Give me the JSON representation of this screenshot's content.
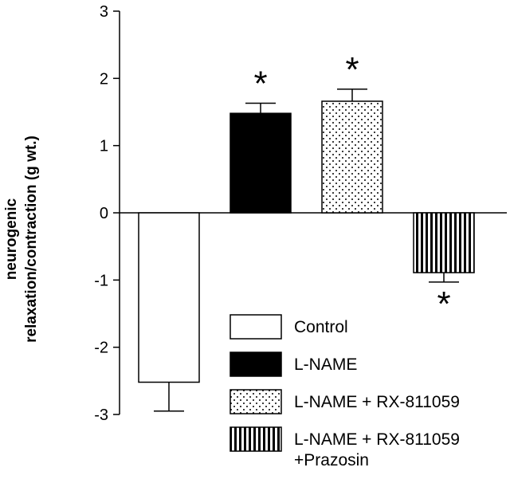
{
  "chart_data": {
    "type": "bar",
    "title": "",
    "xlabel": "",
    "ylabel_lines": [
      "neurogenic",
      "relaxation/contraction (g wt.)"
    ],
    "ylim": [
      -3,
      3
    ],
    "yticks": [
      "3",
      "2",
      "1",
      "0",
      "-1",
      "-2",
      "-3"
    ],
    "grid": false,
    "legend_position": "bottom-right",
    "series": [
      {
        "name": "Control",
        "value": -2.52,
        "error": 0.43,
        "pattern": "white",
        "significant": false
      },
      {
        "name": "L-NAME",
        "value": 1.48,
        "error": 0.15,
        "pattern": "black",
        "significant": true
      },
      {
        "name": "L-NAME + RX-811059",
        "value": 1.66,
        "error": 0.18,
        "pattern": "dots",
        "significant": true
      },
      {
        "name": "L-NAME + RX-811059 +Prazosin",
        "legend_lines": [
          "L-NAME + RX-811059",
          "+Prazosin"
        ],
        "value": -0.89,
        "error": 0.14,
        "pattern": "vstripes",
        "significant": true
      }
    ],
    "significance_marker": "*"
  }
}
